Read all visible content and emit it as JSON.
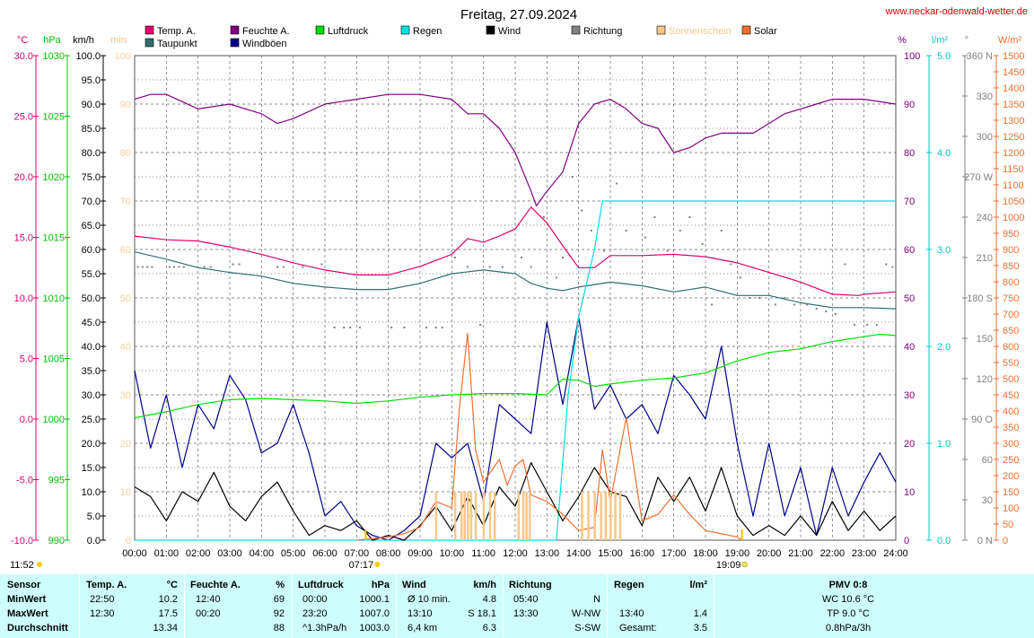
{
  "title": "Freitag, 27.09.2024",
  "site": "www.neckar-odenwald-wetter.de",
  "legend": [
    {
      "label": "Temp. A.",
      "color": "#e0006f"
    },
    {
      "label": "Taupunkt",
      "color": "#2f6f6f"
    },
    {
      "label": "Feuchte A.",
      "color": "#800080"
    },
    {
      "label": "Windböen",
      "color": "#00008b"
    },
    {
      "label": "Luftdruck",
      "color": "#00e000"
    },
    {
      "label": "Regen",
      "color": "#00e0e0"
    },
    {
      "label": "Wind",
      "color": "#000000"
    },
    {
      "label": "Richtung",
      "color": "#808080"
    },
    {
      "label": "Sonnenschein",
      "color": "#f8c888"
    },
    {
      "label": "Solar",
      "color": "#f07030"
    }
  ],
  "axes": {
    "temp_unit": "°C",
    "hpa_unit": "hPa",
    "kmh_unit": "km/h",
    "min_unit": "min",
    "pct_unit": "%",
    "rain_unit": "l/m²",
    "dir_unit": "°",
    "solar_unit": "W/m²",
    "temp_ticks": [
      "30.0",
      "25.0",
      "20.0",
      "15.0",
      "10.0",
      "5.0",
      "0.0",
      "-5.0",
      "-10.0"
    ],
    "hpa_ticks": [
      "1030",
      "1025",
      "1020",
      "1015",
      "1010",
      "1005",
      "1000",
      "995",
      "990"
    ],
    "kmh_ticks": [
      "100.0",
      "95.0",
      "90.0",
      "85.0",
      "80.0",
      "75.0",
      "70.0",
      "65.0",
      "60.0",
      "55.0",
      "50.0",
      "45.0",
      "40.0",
      "35.0",
      "30.0",
      "25.0",
      "20.0",
      "15.0",
      "10.0",
      "5.0",
      "0.0"
    ],
    "min_ticks": [
      "100",
      "90",
      "80",
      "70",
      "60",
      "50",
      "40",
      "30",
      "20",
      "10",
      "0"
    ],
    "pct_ticks": [
      "100",
      "90",
      "80",
      "70",
      "60",
      "50",
      "40",
      "30",
      "20",
      "10",
      "0"
    ],
    "rain_ticks": [
      "5.0",
      "4.0",
      "3.0",
      "2.0",
      "1.0",
      "0.0"
    ],
    "dir_ticks": [
      "360 N",
      "330",
      "300",
      "270 W",
      "240",
      "210",
      "180 S",
      "150",
      "120",
      "90 O",
      "60",
      "30",
      "0 N"
    ],
    "solar_ticks": [
      "1500",
      "1450",
      "1400",
      "1350",
      "1300",
      "1250",
      "1200",
      "1150",
      "1100",
      "1050",
      "1000",
      "950",
      "900",
      "850",
      "800",
      "750",
      "700",
      "650",
      "600",
      "550",
      "500",
      "450",
      "400",
      "350",
      "300",
      "250",
      "200",
      "150",
      "100",
      "50",
      "0"
    ],
    "x_ticks": [
      "00:00",
      "01:00",
      "02:00",
      "03:00",
      "04:00",
      "05:00",
      "06:00",
      "07:00",
      "08:00",
      "09:00",
      "10:00",
      "11:00",
      "12:00",
      "13:00",
      "14:00",
      "15:00",
      "16:00",
      "17:00",
      "18:00",
      "19:00",
      "20:00",
      "21:00",
      "22:00",
      "23:00",
      "24:00"
    ]
  },
  "sun": {
    "daylength": "11:52",
    "sunrise": "07:17",
    "sunset": "19:09"
  },
  "chart_data": {
    "type": "line",
    "x_range": [
      0,
      24
    ],
    "series": [
      {
        "name": "Temp. A.",
        "axis": "°C",
        "ylim": [
          -10,
          30
        ],
        "color": "#e0006f",
        "x": [
          0,
          1,
          2,
          3,
          4,
          5,
          6,
          7,
          8,
          9,
          10,
          10.5,
          11,
          11.5,
          12,
          12.5,
          13,
          13.5,
          14,
          14.5,
          15,
          16,
          17,
          18,
          19,
          20,
          21,
          22,
          22.833,
          23,
          24
        ],
        "y": [
          15.1,
          14.8,
          14.7,
          14.2,
          13.6,
          12.9,
          12.3,
          11.9,
          11.9,
          12.6,
          13.6,
          14.9,
          14.6,
          15.1,
          15.7,
          17.5,
          16.2,
          14.3,
          12.5,
          12.5,
          13.5,
          13.5,
          13.6,
          13.4,
          12.9,
          12.1,
          11.3,
          10.3,
          10.2,
          10.3,
          10.5
        ]
      },
      {
        "name": "Taupunkt",
        "axis": "°C",
        "ylim": [
          -10,
          30
        ],
        "color": "#2f6f6f",
        "x": [
          0,
          1,
          2,
          3,
          4,
          5,
          6,
          7,
          8,
          9,
          10,
          11,
          12,
          12.5,
          13,
          13.5,
          14,
          15,
          16,
          17,
          18,
          19,
          20,
          21,
          22,
          23,
          24
        ],
        "y": [
          13.8,
          13.2,
          12.5,
          12.1,
          11.8,
          11.2,
          10.9,
          10.7,
          10.7,
          11.2,
          12.0,
          12.3,
          12.0,
          11.2,
          10.8,
          10.6,
          10.9,
          11.3,
          11.0,
          10.5,
          10.9,
          10.2,
          10.2,
          9.6,
          9.2,
          9.2,
          9.1
        ]
      },
      {
        "name": "Feuchte A.",
        "axis": "%",
        "ylim": [
          0,
          100
        ],
        "color": "#800080",
        "x": [
          0,
          0.5,
          1,
          2,
          3,
          4,
          4.5,
          5,
          6,
          7,
          8,
          9,
          10,
          10.5,
          11,
          11.5,
          12,
          12.5,
          12.667,
          13,
          13.5,
          14,
          14.5,
          15,
          15.5,
          16,
          16.5,
          17,
          17.5,
          18,
          18.5,
          19,
          19.5,
          20,
          20.5,
          21,
          21.5,
          22,
          23,
          24
        ],
        "y": [
          91,
          92,
          92,
          89,
          90,
          88,
          86,
          87,
          90,
          91,
          92,
          92,
          91,
          88,
          88,
          85,
          80,
          72,
          69,
          72,
          76,
          86,
          90,
          91,
          89,
          86,
          85,
          80,
          81,
          83,
          84,
          84,
          84,
          86,
          88,
          89,
          90,
          91,
          91,
          90
        ]
      },
      {
        "name": "Windböen",
        "axis": "km/h",
        "ylim": [
          0,
          100
        ],
        "color": "#00008b",
        "x": [
          0,
          0.5,
          1,
          1.5,
          2,
          2.5,
          3,
          3.5,
          4,
          4.5,
          5,
          5.5,
          6,
          6.5,
          7,
          7.5,
          8,
          8.5,
          9,
          9.5,
          10,
          10.5,
          11,
          11.5,
          12,
          12.5,
          13,
          13.5,
          14,
          14.5,
          15,
          15.5,
          16,
          16.5,
          17,
          17.5,
          18,
          18.5,
          19,
          19.5,
          20,
          20.5,
          21,
          21.5,
          22,
          22.5,
          23,
          23.5,
          24
        ],
        "y": [
          35,
          19,
          30,
          15,
          28,
          23,
          34,
          29,
          18,
          20,
          28,
          18,
          5,
          8,
          3,
          1,
          0,
          2,
          5,
          20,
          17,
          20,
          8,
          28,
          25,
          22,
          45,
          28,
          46,
          27,
          32,
          25,
          28,
          22,
          34,
          30,
          25,
          40,
          20,
          5,
          20,
          5,
          15,
          1,
          15,
          5,
          12,
          18,
          12
        ]
      },
      {
        "name": "Luftdruck",
        "axis": "hPa",
        "ylim": [
          990,
          1030
        ],
        "color": "#00e000",
        "x": [
          0,
          1,
          2,
          3,
          4,
          5,
          6,
          7,
          8,
          9,
          10,
          11,
          12,
          13,
          13.5,
          14,
          14.5,
          15,
          16,
          17,
          18,
          19,
          20,
          21,
          22,
          23,
          23.5,
          24
        ],
        "y": [
          1000.1,
          1000.6,
          1001.2,
          1001.6,
          1001.7,
          1001.6,
          1001.5,
          1001.3,
          1001.5,
          1001.8,
          1002.0,
          1002.1,
          1002.1,
          1002.0,
          1003.3,
          1003.2,
          1002.7,
          1002.9,
          1003.2,
          1003.4,
          1003.8,
          1004.8,
          1005.5,
          1005.8,
          1006.4,
          1006.8,
          1007.0,
          1006.9
        ]
      },
      {
        "name": "Regen",
        "axis": "l/m²",
        "ylim": [
          0,
          5
        ],
        "color": "#00e0e0",
        "x": [
          0,
          13.3,
          13.67,
          14.0,
          14.5,
          14.75,
          15,
          24
        ],
        "y": [
          0,
          0,
          1.5,
          2.3,
          3.0,
          3.5,
          3.5,
          3.5
        ]
      },
      {
        "name": "Wind",
        "axis": "km/h",
        "ylim": [
          0,
          100
        ],
        "color": "#000000",
        "x": [
          0,
          0.5,
          1,
          1.5,
          2,
          2.5,
          3,
          3.5,
          4,
          4.5,
          5,
          5.5,
          6,
          6.5,
          7,
          7.5,
          8,
          8.5,
          9,
          9.5,
          10,
          10.5,
          11,
          11.5,
          12,
          12.5,
          13,
          13.5,
          14,
          14.5,
          15,
          15.5,
          16,
          16.5,
          17,
          17.5,
          18,
          18.5,
          19,
          19.5,
          20,
          20.5,
          21,
          21.5,
          22,
          22.5,
          23,
          23.5,
          24
        ],
        "y": [
          11,
          9,
          4,
          10,
          8,
          14,
          7,
          4,
          9,
          12,
          6,
          1,
          3,
          2,
          4,
          0,
          1,
          0,
          3,
          7,
          2,
          9,
          3,
          11,
          7,
          16,
          10,
          4,
          9,
          15,
          10,
          9,
          3,
          13,
          8,
          13,
          6,
          15,
          5,
          1,
          3,
          1,
          5,
          1,
          8,
          2,
          6,
          2,
          5
        ]
      },
      {
        "name": "Solar",
        "axis": "W/m²",
        "ylim": [
          0,
          1500
        ],
        "color": "#f07030",
        "x": [
          7,
          7.5,
          8,
          8.5,
          9,
          9.25,
          9.5,
          10,
          10.25,
          10.5,
          10.75,
          11,
          11.5,
          11.75,
          12,
          12.25,
          12.5,
          13,
          13.5,
          14,
          14.5,
          14.75,
          15,
          15.5,
          16,
          16.5,
          17,
          17.5,
          18,
          18.5,
          19,
          19.15
        ],
        "y": [
          0,
          5,
          10,
          20,
          40,
          80,
          120,
          100,
          420,
          640,
          280,
          180,
          250,
          170,
          230,
          250,
          140,
          120,
          80,
          30,
          40,
          280,
          120,
          380,
          60,
          80,
          140,
          80,
          30,
          20,
          10,
          0
        ]
      },
      {
        "name": "Sonnenschein",
        "axis": "min",
        "ylim": [
          0,
          100
        ],
        "color": "#f8c888",
        "x": [
          9.5,
          10.1,
          10.3,
          10.4,
          10.5,
          10.6,
          10.75,
          11,
          11.2,
          11.35,
          12.1,
          12.25,
          12.35,
          12.45,
          14.1,
          14.3,
          14.5,
          14.7,
          14.85,
          15.0,
          15.15,
          15.3
        ],
        "y": [
          10,
          10,
          10,
          10,
          10,
          10,
          10,
          10,
          10,
          10,
          10,
          10,
          10,
          10,
          10,
          10,
          10,
          10,
          10,
          10,
          10,
          10
        ]
      },
      {
        "name": "Richtung",
        "axis": "°",
        "ylim": [
          0,
          360
        ],
        "color": "#808080",
        "x": [
          0.1,
          0.25,
          0.4,
          0.55,
          1.1,
          1.25,
          1.4,
          1.55,
          2.2,
          2.4,
          3.1,
          3.3,
          4.5,
          4.7,
          5.3,
          5.6,
          5.9,
          6.3,
          6.6,
          6.8,
          7.1,
          8.1,
          8.5,
          9.2,
          9.5,
          9.7,
          10.1,
          10.5,
          10.9,
          11.2,
          11.6,
          12.2,
          12.5,
          12.9,
          13.3,
          13.5,
          13.8,
          14.1,
          14.4,
          14.8,
          15.2,
          15.5,
          16.1,
          16.4,
          16.8,
          17.2,
          17.5,
          17.9,
          18.2,
          18.5,
          18.8,
          19.1,
          19.4,
          19.7,
          20.2,
          20.5,
          20.8,
          21.2,
          21.5,
          21.8,
          22.1,
          22.4,
          22.7,
          23.1,
          23.4,
          23.7,
          23.9
        ],
        "y": [
          203,
          203,
          203,
          203,
          203,
          203,
          203,
          203,
          203,
          203,
          205,
          205,
          203,
          203,
          203,
          203,
          205,
          158,
          158,
          158,
          158,
          158,
          158,
          158,
          158,
          158,
          210,
          203,
          160,
          203,
          203,
          210,
          203,
          240,
          195,
          210,
          270,
          245,
          230,
          215,
          265,
          230,
          225,
          240,
          215,
          230,
          240,
          220,
          175,
          230,
          205,
          195,
          180,
          180,
          175,
          180,
          175,
          175,
          172,
          170,
          168,
          205,
          160,
          160,
          160,
          205,
          203
        ]
      }
    ]
  },
  "stats": {
    "header": [
      "Sensor",
      "Temp. A.",
      "°C",
      "Feuchte A.",
      "%",
      "Luftdruck",
      "hPa",
      "Wind",
      "km/h",
      "Richtung",
      "Regen",
      "l/m²",
      "PMV 0:8"
    ],
    "rows": [
      {
        "label": "MinWert",
        "t_time": "22:50",
        "t_val": "10.2",
        "f_time": "12:40",
        "f_val": "69",
        "p_time": "00:00",
        "p_val": "1000.1",
        "w_time": "Ø 10 min.",
        "w_val": "4.8",
        "r_time": "05:40",
        "r_val": "N",
        "rg_time": "",
        "rg_val": "",
        "pmv": "WC 10.6 °C"
      },
      {
        "label": "MaxWert",
        "t_time": "12:30",
        "t_val": "17.5",
        "f_time": "00:20",
        "f_val": "92",
        "p_time": "23:20",
        "p_val": "1007.0",
        "w_time": "13:10",
        "w_val": "S 18.1",
        "r_time": "13:30",
        "r_val": "W-NW",
        "rg_time": "13:40",
        "rg_val": "1.4",
        "pmv": "TP 9.0 °C"
      },
      {
        "label": "Durchschnitt",
        "t_time": "",
        "t_val": "13.34",
        "f_time": "",
        "f_val": "88",
        "p_time": "^1.3hPa/h",
        "p_val": "1003.0",
        "w_time": "6,4 km",
        "w_val": "6.3",
        "r_time": "",
        "r_val": "S-SW",
        "rg_time": "Gesamt:",
        "rg_val": "3.5",
        "pmv": "0.8hPa/3h"
      }
    ]
  }
}
